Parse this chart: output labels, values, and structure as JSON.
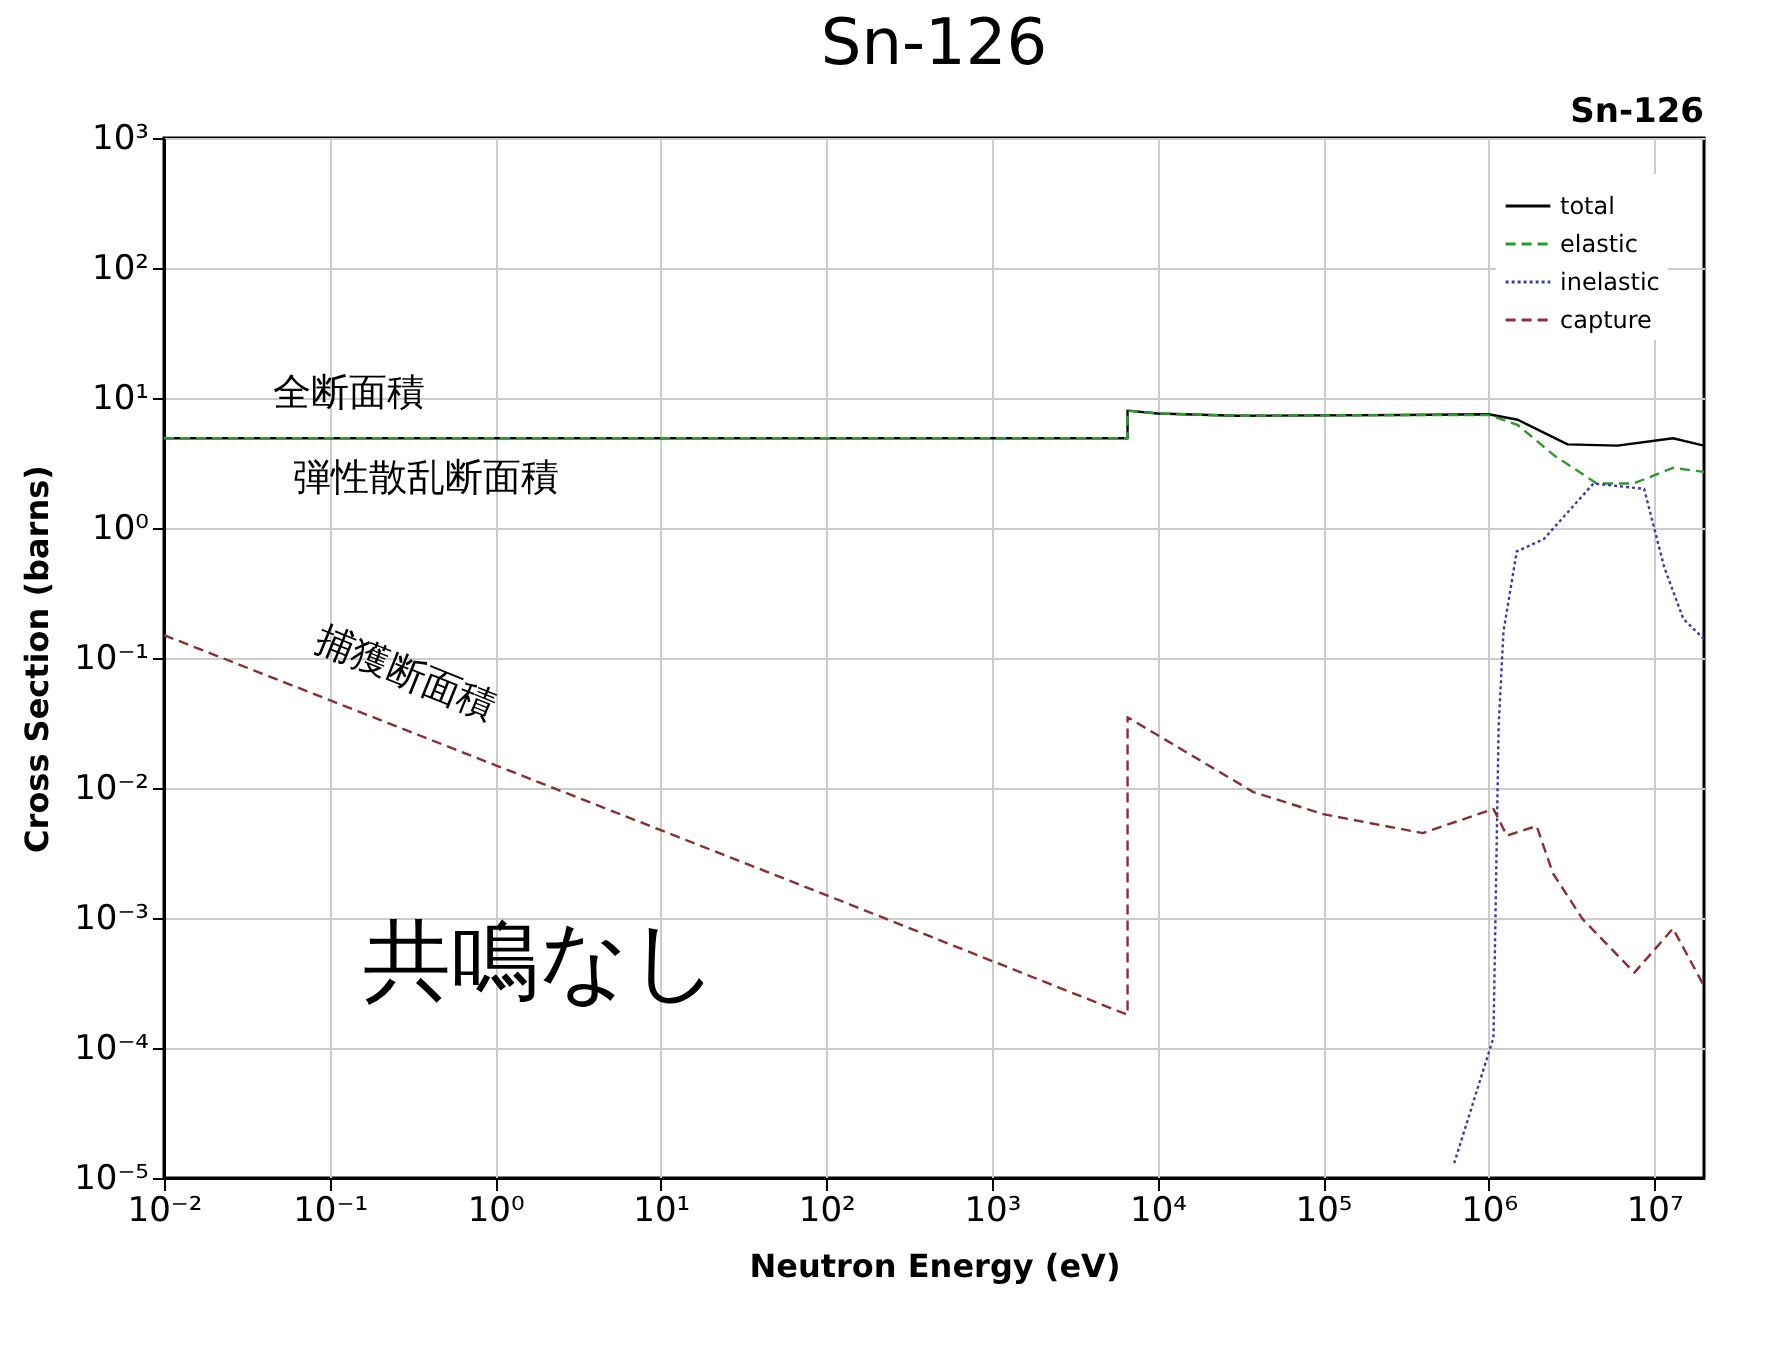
{
  "chart_data": {
    "type": "line",
    "title": "Sn-126",
    "subtitle": "Sn-126",
    "xlabel": "Neutron Energy (eV)",
    "ylabel": "Cross Section (barns)",
    "log": "xy",
    "grid": true,
    "legend": "top right",
    "marker": "none",
    "xlim": [
      0.01,
      20000000
    ],
    "ylim": [
      1e-05,
      1000
    ],
    "xticks": [
      {
        "value": 0.01,
        "label": "10⁻²"
      },
      {
        "value": 0.1,
        "label": "10⁻¹"
      },
      {
        "value": 1,
        "label": "10⁰"
      },
      {
        "value": 10,
        "label": "10¹"
      },
      {
        "value": 100,
        "label": "10²"
      },
      {
        "value": 1000,
        "label": "10³"
      },
      {
        "value": 10000,
        "label": "10⁴"
      },
      {
        "value": 100000,
        "label": "10⁵"
      },
      {
        "value": 1000000,
        "label": "10⁶"
      },
      {
        "value": 10000000,
        "label": "10⁷"
      }
    ],
    "yticks": [
      {
        "value": 1e-05,
        "label": "10⁻⁵"
      },
      {
        "value": 0.0001,
        "label": "10⁻⁴"
      },
      {
        "value": 0.001,
        "label": "10⁻³"
      },
      {
        "value": 0.01,
        "label": "10⁻²"
      },
      {
        "value": 0.1,
        "label": "10⁻¹"
      },
      {
        "value": 1,
        "label": "10⁰"
      },
      {
        "value": 10,
        "label": "10¹"
      },
      {
        "value": 100,
        "label": "10²"
      },
      {
        "value": 1000,
        "label": "10³"
      }
    ],
    "series": [
      {
        "name": "total",
        "color": "#000000",
        "line_style": "solid",
        "x": [
          0.01,
          6600,
          6600,
          10000,
          30000,
          300000,
          1000000,
          1500000,
          3000000,
          6000000,
          13000000,
          20000000
        ],
        "values": [
          4.9,
          4.9,
          8.0,
          7.6,
          7.3,
          7.4,
          7.5,
          6.8,
          4.4,
          4.3,
          4.9,
          4.3
        ]
      },
      {
        "name": "elastic",
        "color": "#2e9a2e",
        "line_style": "dashed",
        "x": [
          0.01,
          6600,
          6600,
          10000,
          30000,
          300000,
          1000000,
          1500000,
          2500000,
          4500000,
          7500000,
          13000000,
          20000000
        ],
        "values": [
          4.9,
          4.9,
          8.0,
          7.6,
          7.3,
          7.4,
          7.4,
          6.2,
          3.6,
          2.2,
          2.2,
          2.9,
          2.7
        ]
      },
      {
        "name": "inelastic",
        "color": "#3a3ab0",
        "line_style": "dotted",
        "x": [
          620000,
          1070000,
          1150000,
          1230000,
          1480000,
          2150000,
          4300000,
          8700000,
          11500000,
          15000000,
          20000000
        ],
        "values": [
          1.3e-05,
          0.00012,
          0.03,
          0.16,
          0.66,
          0.82,
          2.2,
          2.0,
          0.5,
          0.2,
          0.14
        ]
      },
      {
        "name": "capture",
        "color": "#8b2e2e",
        "line_style": "dashed",
        "x": [
          0.01,
          1,
          100,
          6600,
          6600,
          38000,
          100000,
          400000,
          1070000,
          1290000,
          1950000,
          2450000,
          3700000,
          7600000,
          13000000,
          20000000
        ],
        "values": [
          0.15,
          0.015,
          0.0015,
          0.00018,
          0.035,
          0.0093,
          0.0063,
          0.0045,
          0.0069,
          0.0043,
          0.0051,
          0.0022,
          0.00098,
          0.00038,
          0.00083,
          0.0003
        ]
      }
    ],
    "annotations": [
      "全断面積",
      "弾性散乱断面積",
      "捕獲断面積",
      "共鳴なし"
    ]
  }
}
